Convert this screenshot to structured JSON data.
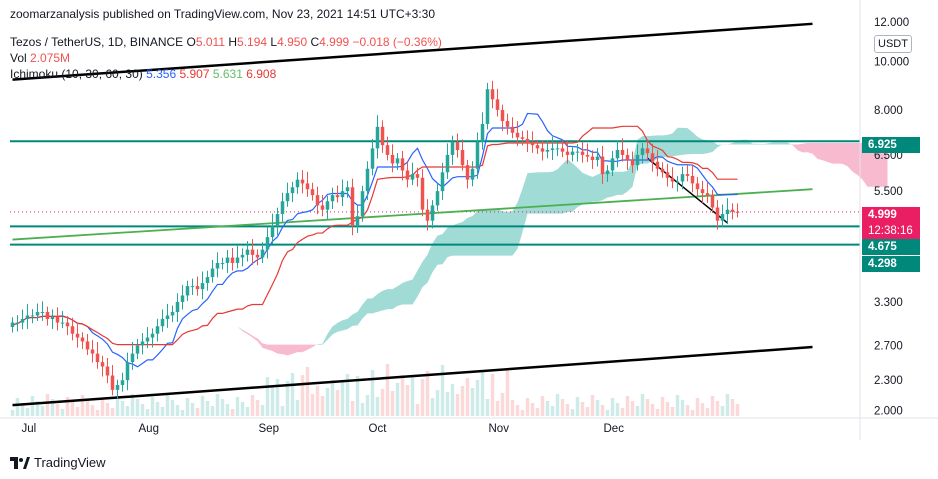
{
  "header": {
    "published": "zoomarzanalysis published on TradingView.com, Nov 23, 2021 14:51 UTC+3:30",
    "symbol": "Tezos / TetherUS, 1D, BINANCE",
    "o_label": "O",
    "o_value": "5.011",
    "h_label": "H",
    "h_value": "5.194",
    "l_label": "L",
    "l_value": "4.950",
    "c_label": "C",
    "c_value": "4.999",
    "change": "−0.018 (−0.36%)",
    "vol_label": "Vol",
    "vol_value": "2.075M",
    "ichimoku_label": "Ichimoku (10, 30, 60, 30)",
    "ichimoku_values": [
      "5.356",
      "5.907",
      "5.631",
      "6.908"
    ]
  },
  "currency_badge": "USDT",
  "brand": "TradingView",
  "price_tags": {
    "level_high": "6.925",
    "last_price": "4.999",
    "countdown": "12:38:16",
    "level_low": "4.675",
    "level_lower": "4.298"
  },
  "colors": {
    "up": "#26a69a",
    "down": "#ef5350",
    "conversion": "#2962ff",
    "base": "#e53935",
    "cloud_bull": "#81cfc8",
    "cloud_bear": "#f4a3bf",
    "level": "#00897b",
    "trend_green": "#4caf50",
    "channel": "#000000",
    "last_price": "#e91e63"
  },
  "chart_data": {
    "type": "candlestick",
    "y_scale": "log",
    "ylim": [
      1.95,
      12.0
    ],
    "y_ticks": [
      "12.000",
      "10.000",
      "8.000",
      "6.500",
      "5.500",
      "3.300",
      "2.700",
      "2.300",
      "2.000"
    ],
    "x_ticks": [
      "Jul",
      "Aug",
      "Sep",
      "Oct",
      "Nov",
      "Dec"
    ],
    "horizontal_levels": [
      6.925,
      4.675,
      4.298
    ],
    "last_price": 4.999,
    "trend_lines": {
      "channel_upper": [
        [
          0,
          9.2
        ],
        [
          160,
          11.9
        ]
      ],
      "channel_lower": [
        [
          0,
          2.05
        ],
        [
          160,
          2.68
        ]
      ],
      "green_support": [
        [
          0,
          4.4
        ],
        [
          160,
          5.55
        ]
      ],
      "descending": [
        [
          127,
          6.4
        ],
        [
          143,
          4.75
        ]
      ]
    },
    "candles_close": [
      3.0,
      3.0,
      3.05,
      3.1,
      3.1,
      3.15,
      3.15,
      3.05,
      3.08,
      3.0,
      3.0,
      2.95,
      2.85,
      2.8,
      2.75,
      2.65,
      2.6,
      2.5,
      2.45,
      2.35,
      2.2,
      2.25,
      2.3,
      2.5,
      2.6,
      2.7,
      2.75,
      2.8,
      2.85,
      2.95,
      3.05,
      3.1,
      3.15,
      3.3,
      3.4,
      3.55,
      3.55,
      3.5,
      3.6,
      3.7,
      3.85,
      3.95,
      3.95,
      4.05,
      3.95,
      4.05,
      4.1,
      4.2,
      4.1,
      4.05,
      4.2,
      4.45,
      4.7,
      4.95,
      5.25,
      5.45,
      5.6,
      5.8,
      5.7,
      5.55,
      5.4,
      5.15,
      5.05,
      5.25,
      5.4,
      5.35,
      5.5,
      5.6,
      4.7,
      4.9,
      5.5,
      6.1,
      6.7,
      7.4,
      6.8,
      6.5,
      6.25,
      6.4,
      6.05,
      5.8,
      5.95,
      5.85,
      5.05,
      4.8,
      5.15,
      5.5,
      6.0,
      6.5,
      6.9,
      6.65,
      6.2,
      5.8,
      6.1,
      6.9,
      7.5,
      8.8,
      8.4,
      8.0,
      7.6,
      7.4,
      7.2,
      7.05,
      7.0,
      6.9,
      6.8,
      6.7,
      6.6,
      6.65,
      6.7,
      6.7,
      6.6,
      6.5,
      6.6,
      6.6,
      6.5,
      6.45,
      6.35,
      6.45,
      5.95,
      6.05,
      6.4,
      6.65,
      6.5,
      6.35,
      6.2,
      6.5,
      6.7,
      6.55,
      6.3,
      6.1,
      6.0,
      5.85,
      5.75,
      5.75,
      5.95,
      5.9,
      5.7,
      5.55,
      5.45,
      5.4,
      5.1,
      4.8,
      4.95,
      5.05,
      5.0,
      4.999
    ]
  }
}
